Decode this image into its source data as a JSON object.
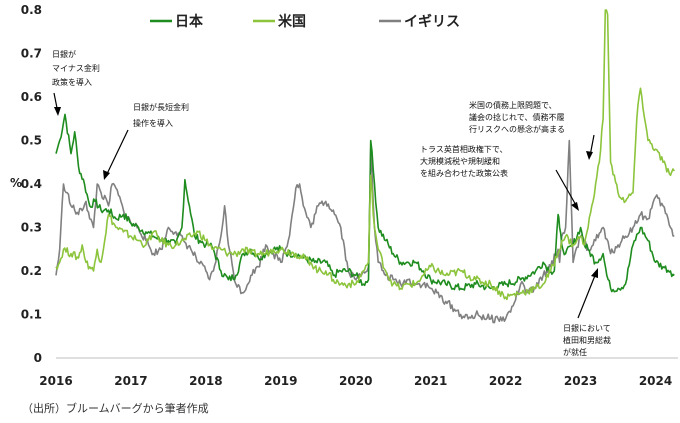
{
  "chart_data": {
    "type": "line",
    "ylabel": "%",
    "ylim": [
      0,
      0.8
    ],
    "yticks": [
      "0",
      "0.1",
      "0.2",
      "0.3",
      "0.4",
      "0.5",
      "0.6",
      "0.7",
      "0.8"
    ],
    "xlim": [
      2016,
      2024.3
    ],
    "xticks": [
      "2016",
      "2017",
      "2018",
      "2019",
      "2020",
      "2021",
      "2022",
      "2023",
      "2024"
    ],
    "grid": false,
    "legend_position": "top",
    "series": [
      {
        "name": "日本",
        "color": "#1e8c1e",
        "x": [
          2016.0,
          2016.05,
          2016.12,
          2016.2,
          2016.25,
          2016.3,
          2016.38,
          2016.45,
          2016.52,
          2016.6,
          2016.7,
          2016.8,
          2016.9,
          2017.0,
          2017.1,
          2017.2,
          2017.3,
          2017.4,
          2017.5,
          2017.6,
          2017.68,
          2017.72,
          2017.78,
          2017.85,
          2017.92,
          2018.0,
          2018.05,
          2018.1,
          2018.2,
          2018.3,
          2018.4,
          2018.5,
          2018.6,
          2018.7,
          2018.8,
          2018.9,
          2019.0,
          2019.1,
          2019.2,
          2019.3,
          2019.45,
          2019.6,
          2019.7,
          2019.8,
          2019.9,
          2020.0,
          2020.1,
          2020.17,
          2020.2,
          2020.25,
          2020.3,
          2020.4,
          2020.5,
          2020.6,
          2020.7,
          2020.8,
          2020.9,
          2021.0,
          2021.2,
          2021.4,
          2021.6,
          2021.8,
          2022.0,
          2022.2,
          2022.4,
          2022.5,
          2022.6,
          2022.65,
          2022.7,
          2022.72,
          2022.75,
          2022.8,
          2022.9,
          2023.0,
          2023.05,
          2023.1,
          2023.2,
          2023.3,
          2023.35,
          2023.4,
          2023.5,
          2023.6,
          2023.7,
          2023.8,
          2023.9,
          2024.0,
          2024.1,
          2024.2,
          2024.25
        ],
        "values": [
          0.47,
          0.5,
          0.56,
          0.47,
          0.52,
          0.44,
          0.4,
          0.35,
          0.36,
          0.34,
          0.34,
          0.32,
          0.33,
          0.31,
          0.3,
          0.29,
          0.28,
          0.27,
          0.27,
          0.26,
          0.3,
          0.41,
          0.35,
          0.28,
          0.27,
          0.26,
          0.26,
          0.25,
          0.2,
          0.18,
          0.19,
          0.24,
          0.25,
          0.23,
          0.24,
          0.25,
          0.25,
          0.24,
          0.24,
          0.23,
          0.22,
          0.22,
          0.19,
          0.2,
          0.2,
          0.19,
          0.17,
          0.18,
          0.5,
          0.4,
          0.3,
          0.27,
          0.24,
          0.22,
          0.22,
          0.22,
          0.2,
          0.18,
          0.17,
          0.16,
          0.17,
          0.16,
          0.17,
          0.18,
          0.2,
          0.22,
          0.2,
          0.2,
          0.33,
          0.3,
          0.26,
          0.24,
          0.26,
          0.3,
          0.26,
          0.25,
          0.22,
          0.24,
          0.19,
          0.16,
          0.16,
          0.17,
          0.26,
          0.3,
          0.27,
          0.22,
          0.21,
          0.2,
          0.19
        ]
      },
      {
        "name": "米国",
        "color": "#8cc43c",
        "x": [
          2016.0,
          2016.05,
          2016.1,
          2016.2,
          2016.3,
          2016.35,
          2016.4,
          2016.5,
          2016.55,
          2016.6,
          2016.7,
          2016.8,
          2016.9,
          2017.0,
          2017.1,
          2017.2,
          2017.3,
          2017.4,
          2017.5,
          2017.6,
          2017.7,
          2017.8,
          2017.9,
          2018.0,
          2018.1,
          2018.2,
          2018.3,
          2018.4,
          2018.5,
          2018.6,
          2018.7,
          2018.8,
          2018.9,
          2019.0,
          2019.2,
          2019.4,
          2019.5,
          2019.6,
          2019.7,
          2019.8,
          2019.9,
          2020.0,
          2020.1,
          2020.17,
          2020.2,
          2020.25,
          2020.3,
          2020.4,
          2020.5,
          2020.6,
          2020.7,
          2020.8,
          2020.9,
          2021.0,
          2021.2,
          2021.4,
          2021.6,
          2021.8,
          2022.0,
          2022.2,
          2022.4,
          2022.5,
          2022.6,
          2022.7,
          2022.75,
          2022.8,
          2022.9,
          2022.95,
          2023.0,
          2023.05,
          2023.1,
          2023.15,
          2023.2,
          2023.25,
          2023.3,
          2023.33,
          2023.36,
          2023.4,
          2023.5,
          2023.6,
          2023.7,
          2023.75,
          2023.8,
          2023.9,
          2024.0,
          2024.1,
          2024.2,
          2024.25
        ],
        "values": [
          0.21,
          0.22,
          0.25,
          0.24,
          0.23,
          0.26,
          0.22,
          0.2,
          0.25,
          0.22,
          0.33,
          0.3,
          0.29,
          0.28,
          0.27,
          0.26,
          0.29,
          0.27,
          0.26,
          0.26,
          0.27,
          0.28,
          0.29,
          0.27,
          0.25,
          0.25,
          0.24,
          0.24,
          0.25,
          0.24,
          0.24,
          0.24,
          0.25,
          0.25,
          0.24,
          0.22,
          0.2,
          0.2,
          0.18,
          0.17,
          0.17,
          0.17,
          0.2,
          0.22,
          0.42,
          0.3,
          0.25,
          0.2,
          0.17,
          0.16,
          0.17,
          0.17,
          0.19,
          0.21,
          0.19,
          0.2,
          0.18,
          0.17,
          0.14,
          0.15,
          0.16,
          0.17,
          0.2,
          0.24,
          0.27,
          0.28,
          0.26,
          0.27,
          0.28,
          0.26,
          0.3,
          0.35,
          0.4,
          0.45,
          0.55,
          0.8,
          0.79,
          0.45,
          0.38,
          0.36,
          0.38,
          0.55,
          0.62,
          0.5,
          0.48,
          0.45,
          0.42,
          0.43
        ]
      },
      {
        "name": "イギリス",
        "color": "#808080",
        "x": [
          2016.0,
          2016.05,
          2016.1,
          2016.15,
          2016.2,
          2016.3,
          2016.4,
          2016.45,
          2016.5,
          2016.55,
          2016.6,
          2016.7,
          2016.75,
          2016.8,
          2016.9,
          2017.0,
          2017.1,
          2017.2,
          2017.3,
          2017.4,
          2017.5,
          2017.6,
          2017.7,
          2017.8,
          2017.9,
          2018.0,
          2018.05,
          2018.1,
          2018.2,
          2018.25,
          2018.3,
          2018.4,
          2018.5,
          2018.6,
          2018.7,
          2018.8,
          2018.9,
          2019.0,
          2019.1,
          2019.2,
          2019.25,
          2019.3,
          2019.4,
          2019.5,
          2019.6,
          2019.7,
          2019.8,
          2019.9,
          2020.0,
          2020.1,
          2020.17,
          2020.2,
          2020.25,
          2020.3,
          2020.4,
          2020.5,
          2020.6,
          2020.7,
          2020.8,
          2020.9,
          2021.0,
          2021.2,
          2021.4,
          2021.5,
          2021.6,
          2021.8,
          2022.0,
          2022.1,
          2022.2,
          2022.3,
          2022.4,
          2022.5,
          2022.6,
          2022.7,
          2022.72,
          2022.75,
          2022.8,
          2022.85,
          2022.9,
          2023.0,
          2023.1,
          2023.2,
          2023.3,
          2023.4,
          2023.5,
          2023.6,
          2023.7,
          2023.8,
          2023.9,
          2024.0,
          2024.1,
          2024.2,
          2024.25
        ],
        "values": [
          0.19,
          0.25,
          0.4,
          0.38,
          0.35,
          0.33,
          0.36,
          0.32,
          0.3,
          0.4,
          0.38,
          0.35,
          0.4,
          0.39,
          0.34,
          0.31,
          0.3,
          0.27,
          0.24,
          0.25,
          0.3,
          0.29,
          0.27,
          0.25,
          0.22,
          0.2,
          0.18,
          0.2,
          0.28,
          0.35,
          0.26,
          0.17,
          0.15,
          0.19,
          0.21,
          0.26,
          0.24,
          0.22,
          0.27,
          0.39,
          0.4,
          0.35,
          0.3,
          0.35,
          0.36,
          0.34,
          0.3,
          0.2,
          0.18,
          0.2,
          0.21,
          0.48,
          0.3,
          0.22,
          0.19,
          0.18,
          0.17,
          0.18,
          0.17,
          0.17,
          0.16,
          0.13,
          0.1,
          0.09,
          0.1,
          0.09,
          0.09,
          0.12,
          0.17,
          0.15,
          0.16,
          0.19,
          0.21,
          0.25,
          0.22,
          0.28,
          0.3,
          0.5,
          0.22,
          0.28,
          0.25,
          0.27,
          0.3,
          0.24,
          0.26,
          0.28,
          0.3,
          0.33,
          0.32,
          0.37,
          0.35,
          0.3,
          0.28
        ]
      }
    ],
    "annotations": [
      {
        "lines": [
          "日銀が",
          "マイナス金利",
          "政策を導入"
        ]
      },
      {
        "lines": [
          "日銀が長短金利",
          "操作を導入"
        ]
      },
      {
        "lines": [
          "トラス英首相政権下で、",
          "大規模減税や規制緩和",
          "を組み合わせた政策公表"
        ]
      },
      {
        "lines": [
          "米国の債務上限問題で、",
          "議会の捻じれで、債務不履",
          "行リスクへの懸念が高まる"
        ]
      },
      {
        "lines": [
          "日銀において",
          "植田和男総裁",
          "が就任"
        ]
      }
    ],
    "source_note": "（出所）ブルームバーグから筆者作成"
  }
}
